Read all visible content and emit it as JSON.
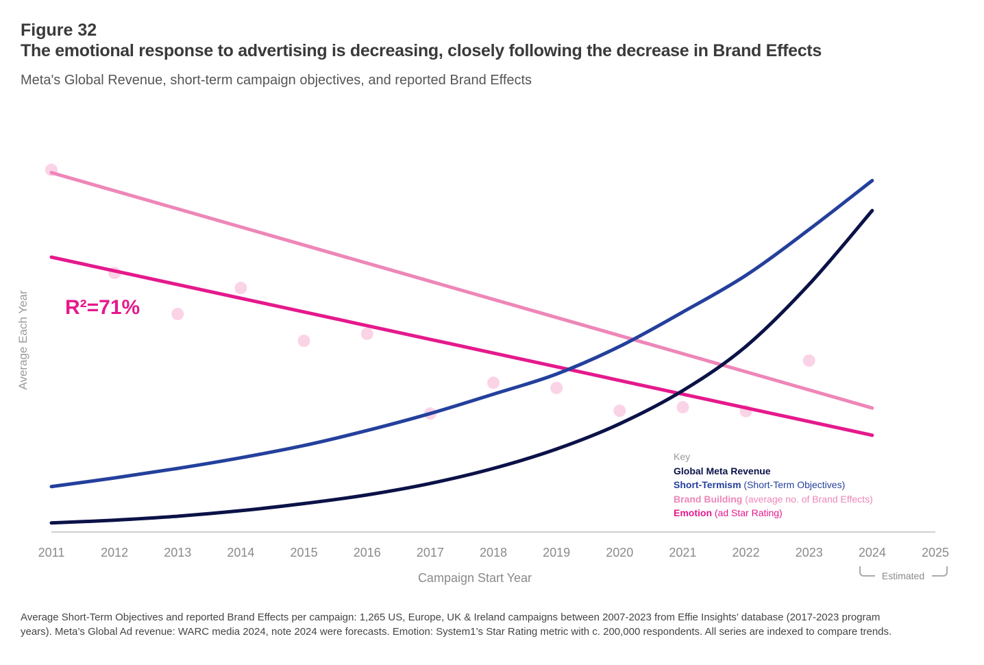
{
  "figure_label": "Figure 32",
  "title": "The emotional response to advertising is decreasing, closely following the decrease in Brand Effects",
  "subtitle": "Meta's Global Revenue, short-term campaign objectives, and reported Brand Effects",
  "annotation": "R²=71%",
  "estimated_label": "Estimated",
  "key": {
    "heading": "Key",
    "items": [
      {
        "bold": "Global Meta Revenue",
        "rest": ""
      },
      {
        "bold": "Short-Termism",
        "rest": " (Short-Term Objectives)"
      },
      {
        "bold": "Brand Building",
        "rest": " (average no. of Brand Effects)"
      },
      {
        "bold": "Emotion",
        "rest": " (ad Star Rating)"
      }
    ]
  },
  "footnote": "Average Short-Term Objectives and reported Brand Effects per campaign: 1,265 US, Europe, UK & Ireland campaigns between 2007-2023 from Effie Insights’ database (2017-2023 program years). Meta’s Global Ad revenue: WARC media 2024, note 2024 were forecasts. Emotion: System1’s Star Rating metric with c. 200,000 respondents. All series are indexed to compare trends.",
  "chart_data": {
    "type": "line",
    "title": "The emotional response to advertising is decreasing, closely following the decrease in Brand Effects",
    "xlabel": "Campaign Start Year",
    "ylabel": "Average Each Year",
    "x_ticks": [
      "2011",
      "2012",
      "2013",
      "2014",
      "2015",
      "2016",
      "2017",
      "2018",
      "2019",
      "2020",
      "2021",
      "2022",
      "2023",
      "2024",
      "2025"
    ],
    "xlim": [
      2011,
      2025
    ],
    "ylim": [
      0,
      100
    ],
    "grid": false,
    "legend_position": "bottom-right",
    "series": [
      {
        "name": "Global Meta Revenue",
        "color": "#0b1247",
        "x": [
          2011,
          2012,
          2013,
          2014,
          2015,
          2016,
          2017,
          2018,
          2019,
          2020,
          2021,
          2022,
          2023,
          2024
        ],
        "values": [
          2.3,
          3,
          4,
          5.4,
          7.2,
          9.4,
          12.3,
          16.1,
          21,
          27.4,
          35.8,
          47,
          62.7,
          81.4
        ]
      },
      {
        "name": "Short-Termism",
        "color": "#24409c",
        "x": [
          2011,
          2012,
          2013,
          2014,
          2015,
          2016,
          2017,
          2018,
          2019,
          2020,
          2021,
          2022,
          2023,
          2024
        ],
        "values": [
          11.5,
          13.7,
          16.1,
          18.8,
          21.9,
          25.7,
          30,
          34.9,
          40,
          47,
          55.7,
          65,
          76.6,
          89
        ]
      },
      {
        "name": "Brand Building",
        "color": "#ee86b8",
        "x": [
          2011,
          2024
        ],
        "values": [
          91,
          31.4
        ]
      },
      {
        "name": "Emotion",
        "color": "#e5198c",
        "x": [
          2011,
          2024
        ],
        "values": [
          69.6,
          24.5
        ]
      }
    ],
    "points": {
      "name": "Emotion data points",
      "color": "#fbd3e6",
      "x": [
        2011,
        2012,
        2013,
        2014,
        2015,
        2016,
        2017,
        2018,
        2019,
        2020,
        2021,
        2022,
        2023
      ],
      "values": [
        91.7,
        65.6,
        55.2,
        61.8,
        48.4,
        50.2,
        30,
        37.8,
        36.5,
        30.7,
        31.6,
        30.6,
        43.4
      ]
    },
    "estimated_range": [
      2024,
      2025
    ]
  }
}
